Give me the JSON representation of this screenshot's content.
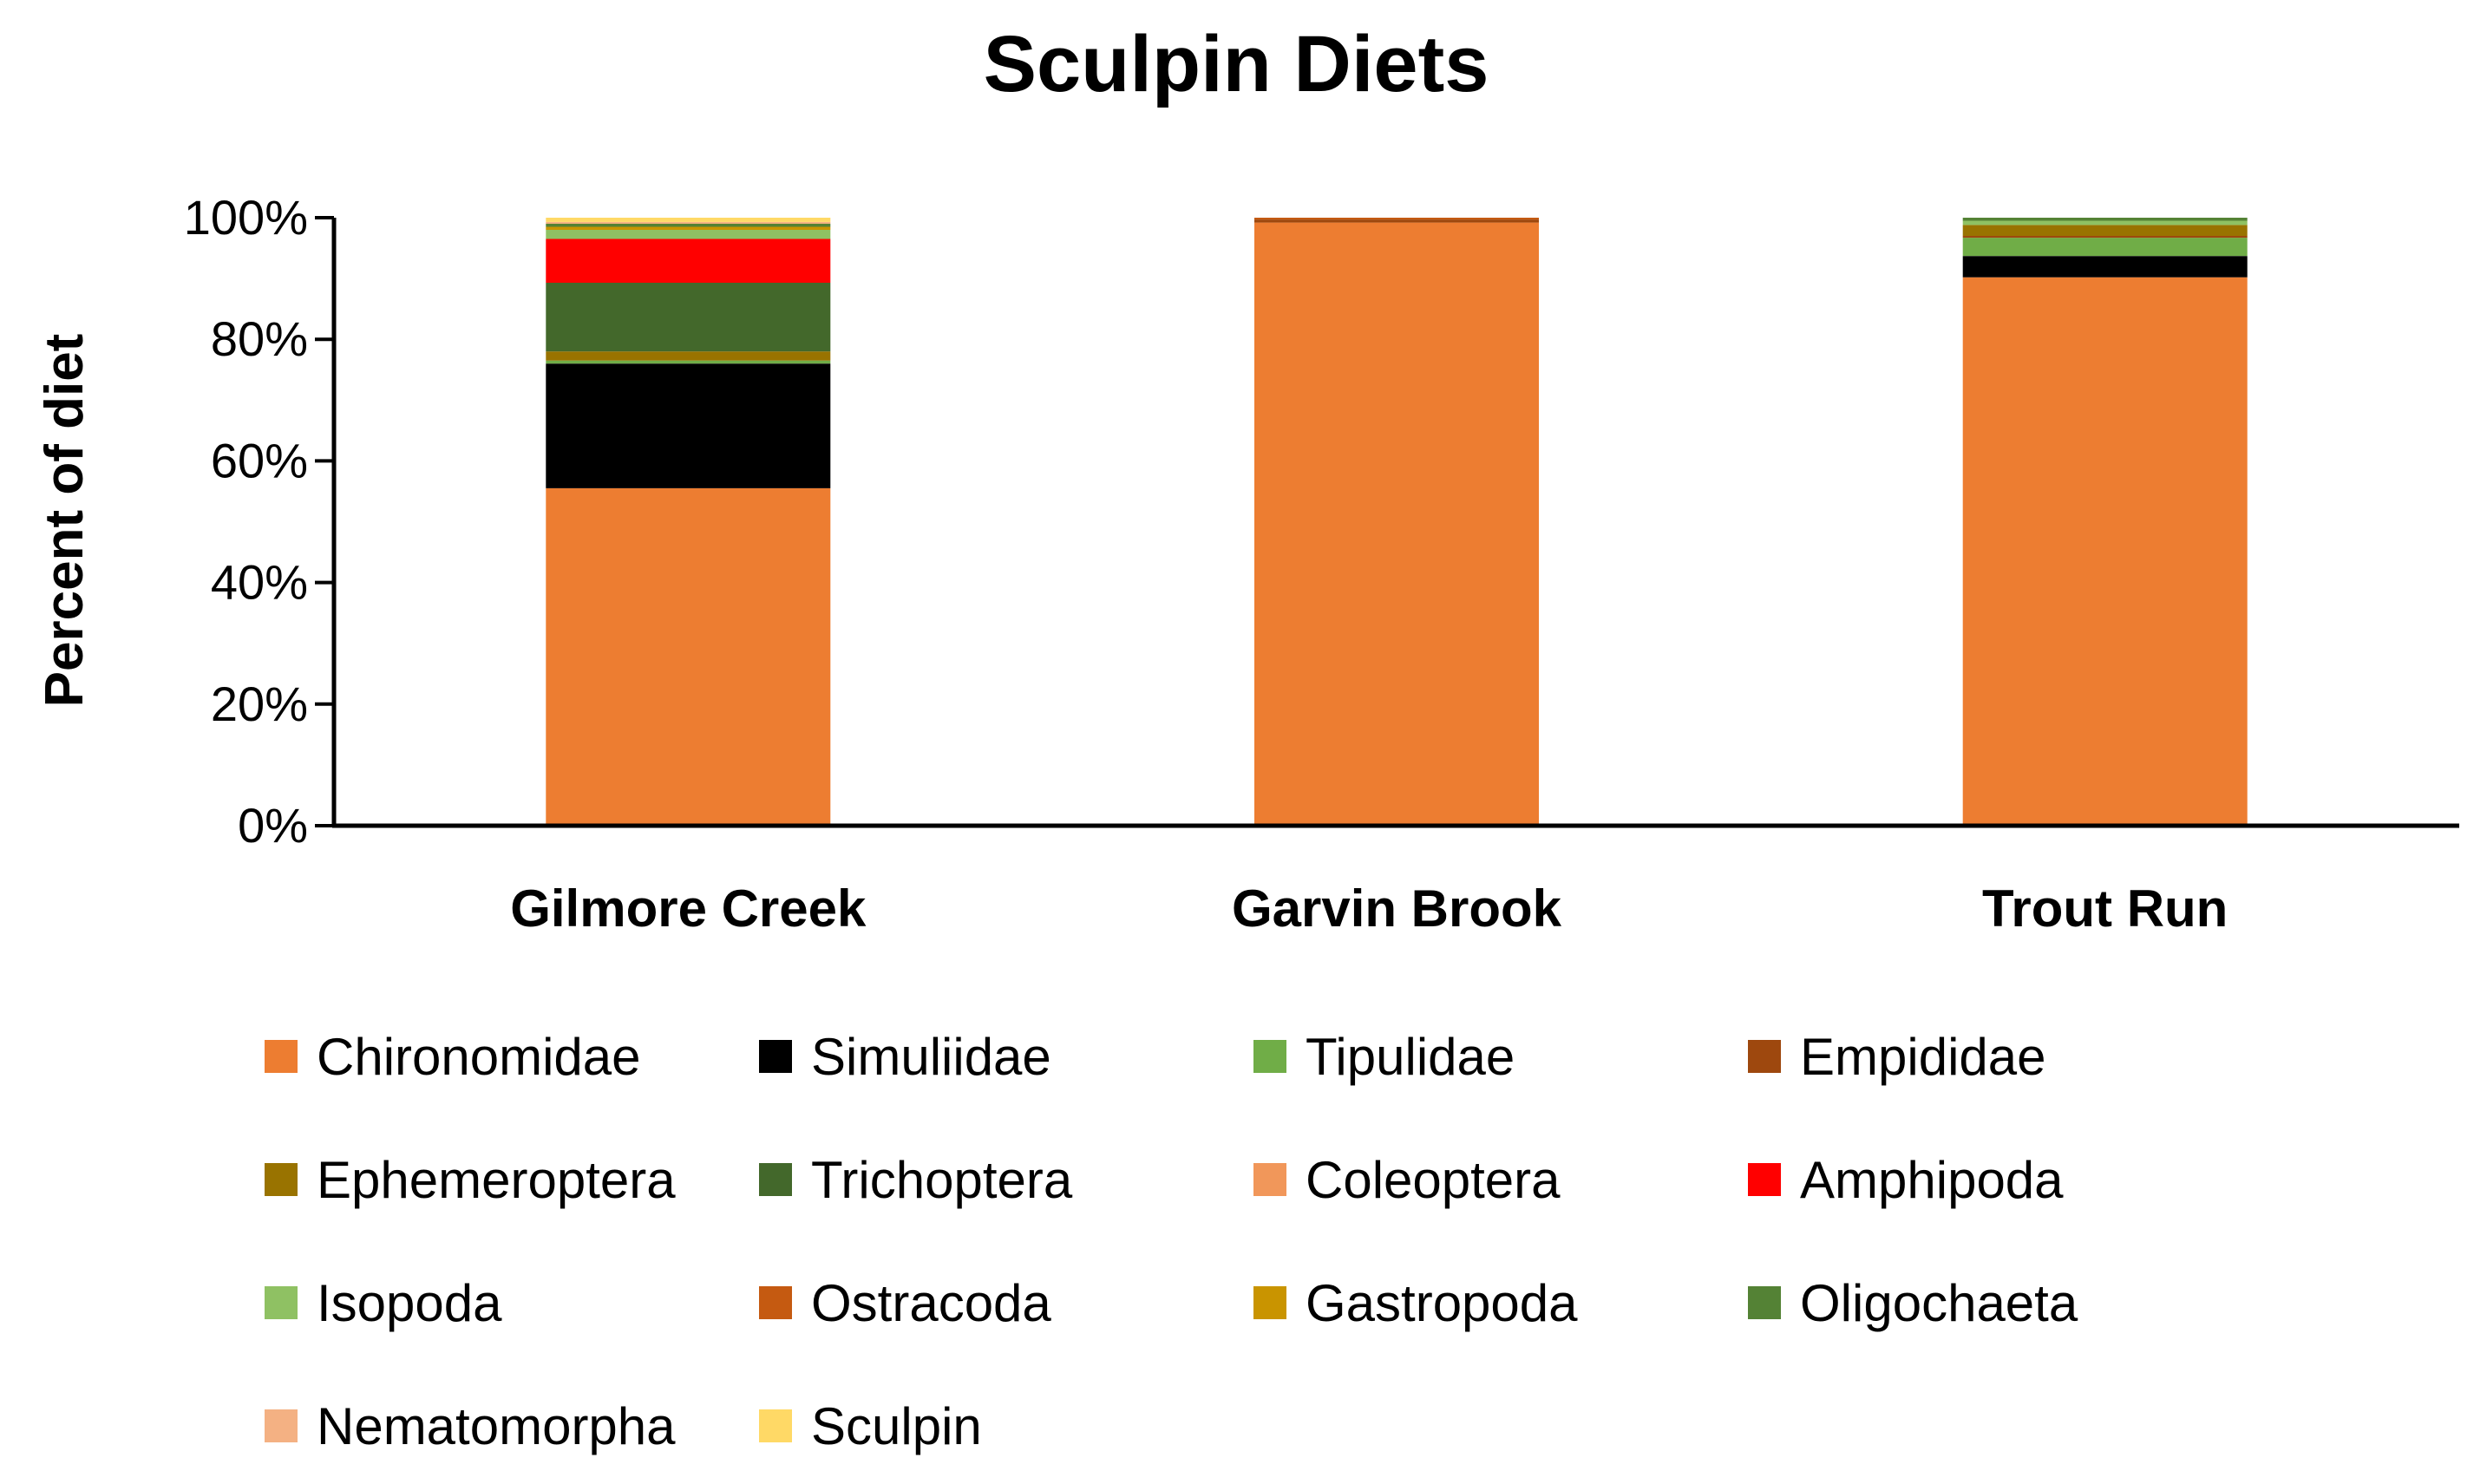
{
  "chart_data": {
    "type": "bar",
    "stacked": true,
    "title": "Sculpin Diets",
    "xlabel": "",
    "ylabel": "Percent of diet",
    "ylim": [
      0,
      100
    ],
    "y_tick_labels": [
      "0%",
      "20%",
      "40%",
      "60%",
      "80%",
      "100%"
    ],
    "grid": false,
    "legend_position": "bottom",
    "categories": [
      "Gilmore Creek",
      "Garvin Brook",
      "Trout Run"
    ],
    "series": [
      {
        "name": "Chironomidae",
        "color": "#ED7D31",
        "values": [
          55.5,
          99.2,
          90.2
        ]
      },
      {
        "name": "Simuliidae",
        "color": "#000000",
        "values": [
          20.5,
          0.0,
          3.5
        ]
      },
      {
        "name": "Tipulidae",
        "color": "#70AD47",
        "values": [
          0.5,
          0.0,
          3.0
        ]
      },
      {
        "name": "Empididae",
        "color": "#9E480E",
        "values": [
          0.0,
          0.5,
          0.3
        ]
      },
      {
        "name": "Ephemeroptera",
        "color": "#997300",
        "values": [
          1.5,
          0.0,
          1.8
        ]
      },
      {
        "name": "Trichoptera",
        "color": "#43682B",
        "values": [
          11.3,
          0.0,
          0.0
        ]
      },
      {
        "name": "Coleoptera",
        "color": "#F1975A",
        "values": [
          0.0,
          0.0,
          0.0
        ]
      },
      {
        "name": "Amphipoda",
        "color": "#FF0000",
        "values": [
          7.2,
          0.0,
          0.0
        ]
      },
      {
        "name": "Isopoda",
        "color": "#8FC163",
        "values": [
          1.5,
          0.0,
          0.7
        ]
      },
      {
        "name": "Ostracoda",
        "color": "#C55A11",
        "values": [
          0.0,
          0.3,
          0.0
        ]
      },
      {
        "name": "Gastropoda",
        "color": "#C99400",
        "values": [
          0.5,
          0.0,
          0.0
        ]
      },
      {
        "name": "Oligochaeta",
        "color": "#548235",
        "values": [
          0.5,
          0.0,
          0.5
        ]
      },
      {
        "name": "Nematomorpha",
        "color": "#F4B183",
        "values": [
          0.3,
          0.0,
          0.0
        ]
      },
      {
        "name": "Sculpin",
        "color": "#FFD966",
        "values": [
          0.7,
          0.0,
          0.0
        ]
      }
    ]
  }
}
